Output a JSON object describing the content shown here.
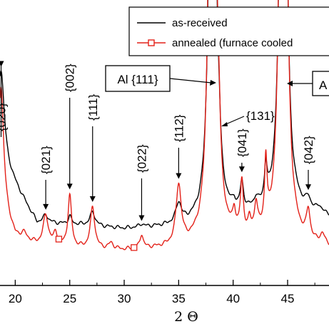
{
  "chart_data": {
    "type": "line",
    "xlabel": "2 Θ",
    "ylabel": "",
    "xlim": [
      18.6,
      48.8
    ],
    "ylim": [
      0,
      100
    ],
    "x_ticks": [
      "20",
      "25",
      "30",
      "35",
      "40",
      "45"
    ],
    "grid": false,
    "legend": {
      "placement": "top-right",
      "entries": [
        {
          "label": "as-received",
          "color": "#000000",
          "marker": "none"
        },
        {
          "label": "annealed (furnace cooled",
          "color": "#e32119",
          "marker": "square"
        }
      ]
    },
    "peak_labels": [
      {
        "text": "{020}",
        "x": 18.7
      },
      {
        "text": "{021}",
        "x": 22.8
      },
      {
        "text": "{002}",
        "x": 25.0
      },
      {
        "text": "{111}",
        "x": 27.1
      },
      {
        "text": "{022}",
        "x": 31.6
      },
      {
        "text": "{112}",
        "x": 35.0
      },
      {
        "text": "{131}",
        "x": 38.7
      },
      {
        "text": "{041}",
        "x": 40.8
      },
      {
        "text": "{042}",
        "x": 46.9
      }
    ],
    "boxed_labels": [
      {
        "text": "Al {111}",
        "x": 38.1
      },
      {
        "text": "A",
        "x": 44.6
      }
    ],
    "series": [
      {
        "name": "as-received",
        "color": "#000000",
        "baseline": [
          [
            18.6,
            52
          ],
          [
            22,
            19
          ],
          [
            26,
            18
          ],
          [
            30,
            16
          ],
          [
            34,
            17
          ],
          [
            36,
            18
          ],
          [
            38,
            20
          ],
          [
            40,
            22
          ],
          [
            43,
            24
          ],
          [
            46,
            24
          ],
          [
            48.8,
            22
          ]
        ],
        "peaks": [
          [
            18.7,
            46,
            0.35
          ],
          [
            22.8,
            4,
            0.3
          ],
          [
            25.0,
            4,
            0.18
          ],
          [
            27.1,
            7,
            0.28
          ],
          [
            31.6,
            1.5,
            0.25
          ],
          [
            35.0,
            10,
            0.3
          ],
          [
            38.1,
            520,
            0.22
          ],
          [
            38.7,
            15,
            0.15
          ],
          [
            40.1,
            3,
            0.15
          ],
          [
            40.8,
            13,
            0.18
          ],
          [
            42.1,
            4,
            0.2
          ],
          [
            43.0,
            17,
            0.14
          ],
          [
            44.6,
            480,
            0.24
          ],
          [
            46.9,
            5,
            0.25
          ],
          [
            47.9,
            3,
            0.25
          ]
        ]
      },
      {
        "name": "annealed (furnace cooled",
        "color": "#e32119",
        "baseline": [
          [
            18.6,
            30
          ],
          [
            20,
            12
          ],
          [
            22,
            8
          ],
          [
            26,
            6
          ],
          [
            30,
            5
          ],
          [
            34,
            6
          ],
          [
            36,
            7
          ],
          [
            38,
            9
          ],
          [
            40,
            10
          ],
          [
            43,
            10
          ],
          [
            46,
            8
          ],
          [
            48.8,
            6
          ]
        ],
        "peaks": [
          [
            18.7,
            60,
            0.28
          ],
          [
            20.8,
            3,
            0.3
          ],
          [
            22.8,
            15,
            0.28
          ],
          [
            23.7,
            6,
            0.2
          ],
          [
            25.0,
            26,
            0.2
          ],
          [
            27.1,
            21,
            0.24
          ],
          [
            28.8,
            3,
            0.25
          ],
          [
            31.6,
            7,
            0.18
          ],
          [
            35.0,
            30,
            0.28
          ],
          [
            38.1,
            720,
            0.2
          ],
          [
            38.7,
            20,
            0.15
          ],
          [
            40.1,
            9,
            0.15
          ],
          [
            40.8,
            25,
            0.16
          ],
          [
            41.5,
            6,
            0.14
          ],
          [
            42.1,
            14,
            0.17
          ],
          [
            43.0,
            33,
            0.13
          ],
          [
            44.6,
            650,
            0.22
          ],
          [
            46.9,
            14,
            0.2
          ],
          [
            48.2,
            5,
            0.25
          ]
        ]
      }
    ],
    "markers_x": [
      24.0,
      30.9,
      37.9
    ]
  }
}
